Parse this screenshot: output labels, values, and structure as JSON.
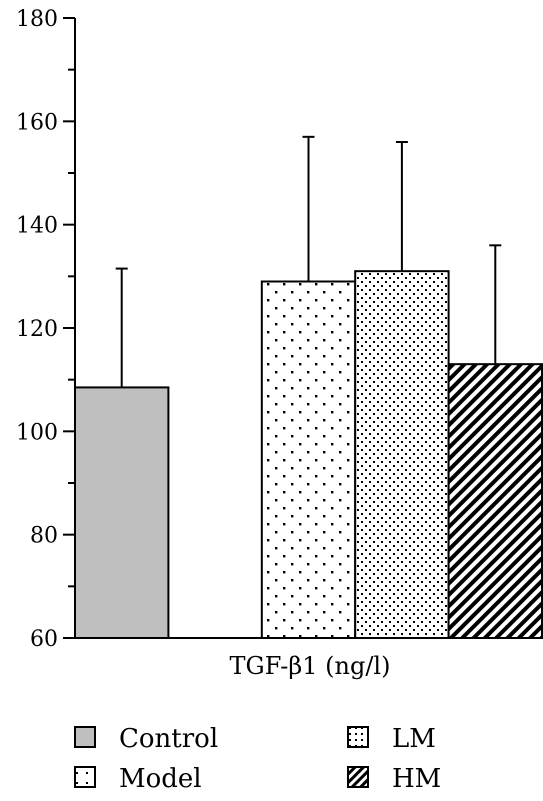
{
  "chart_data": {
    "type": "bar",
    "xlabel": "TGF-β1 (ng/l)",
    "ylabel": "",
    "ylim": [
      60,
      180
    ],
    "yticks": [
      60,
      80,
      100,
      120,
      140,
      160,
      180
    ],
    "grid": false,
    "legend_position": "bottom",
    "series": [
      {
        "name": "Control",
        "value": 108.5,
        "error": 23,
        "fill": "#bfbfbf",
        "pattern": "solid"
      },
      {
        "name": "Model",
        "value": 60,
        "error": 0,
        "fill": "#ffffff",
        "pattern": "none"
      },
      {
        "name": "Model",
        "value": 129,
        "error": 28,
        "fill": "#ffffff",
        "pattern": "sparse-dots"
      },
      {
        "name": "LM",
        "value": 131,
        "error": 25,
        "fill": "#ffffff",
        "pattern": "dense-dots"
      },
      {
        "name": "HM",
        "value": 113,
        "error": 23,
        "fill": "#ffffff",
        "pattern": "diagonal"
      }
    ],
    "legend": [
      {
        "label": "Control",
        "pattern": "solid"
      },
      {
        "label": "LM",
        "pattern": "dense-dots"
      },
      {
        "label": "Model",
        "pattern": "sparse-dots"
      },
      {
        "label": "HM",
        "pattern": "diagonal"
      }
    ]
  }
}
